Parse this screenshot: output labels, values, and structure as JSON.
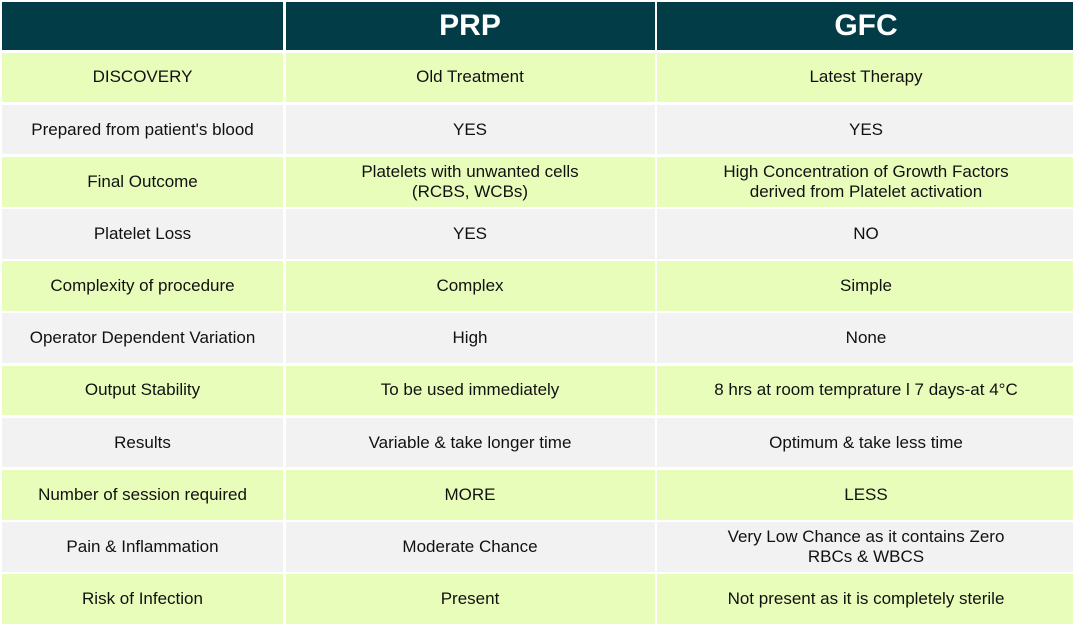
{
  "header": {
    "corner": "",
    "col1": "PRP",
    "col2": "GFC"
  },
  "rows": [
    {
      "label": "DISCOVERY",
      "prp": "Old Treatment",
      "gfc": "Latest Therapy"
    },
    {
      "label": "Prepared from patient's blood",
      "prp": "YES",
      "gfc": "YES"
    },
    {
      "label": "Final Outcome",
      "prp": "Platelets with unwanted cells\n(RCBS, WCBs)",
      "gfc": "High Concentration of Growth Factors\nderived from Platelet activation"
    },
    {
      "label": "Platelet Loss",
      "prp": "YES",
      "gfc": "NO"
    },
    {
      "label": "Complexity of procedure",
      "prp": "Complex",
      "gfc": "Simple"
    },
    {
      "label": "Operator Dependent Variation",
      "prp": "High",
      "gfc": "None"
    },
    {
      "label": "Output Stability",
      "prp": "To be used immediately",
      "gfc": "8 hrs at room temprature l 7 days-at 4°C"
    },
    {
      "label": "Results",
      "prp": "Variable & take longer time",
      "gfc": "Optimum & take less time"
    },
    {
      "label": "Number of session required",
      "prp": "MORE",
      "gfc": "LESS"
    },
    {
      "label": "Pain & Inflammation",
      "prp": "Moderate Chance",
      "gfc": "Very Low Chance as it contains Zero\nRBCs & WBCS"
    },
    {
      "label": "Risk of Infection",
      "prp": "Present",
      "gfc": "Not present as it is completely sterile"
    }
  ],
  "colors": {
    "header_bg": "#023d47",
    "row_green": "#e9fdbb",
    "row_gray": "#f2f2f2"
  }
}
